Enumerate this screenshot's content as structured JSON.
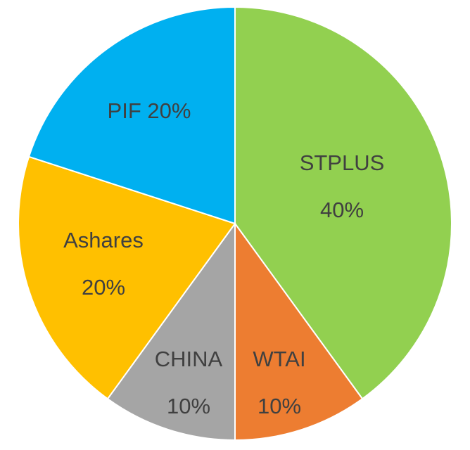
{
  "chart_data": {
    "type": "pie",
    "categories": [
      "STPLUS",
      "WTAI",
      "CHINA",
      "Ashares",
      "PIF"
    ],
    "values": [
      40,
      10,
      10,
      20,
      20
    ],
    "colors": [
      "#92d050",
      "#ed7d31",
      "#a5a5a5",
      "#ffc000",
      "#00b0f0"
    ],
    "data_labels": [
      {
        "name": "STPLUS",
        "value": "40%",
        "layout": "two-line"
      },
      {
        "name": "WTAI",
        "value": "10%",
        "layout": "two-line"
      },
      {
        "name": "CHINA",
        "value": "10%",
        "layout": "two-line"
      },
      {
        "name": "Ashares",
        "value": "20%",
        "layout": "two-line"
      },
      {
        "name": "PIF",
        "value": "20%",
        "layout": "one-line"
      }
    ],
    "legend": "none",
    "start_angle": "12 o'clock",
    "direction": "clockwise"
  }
}
